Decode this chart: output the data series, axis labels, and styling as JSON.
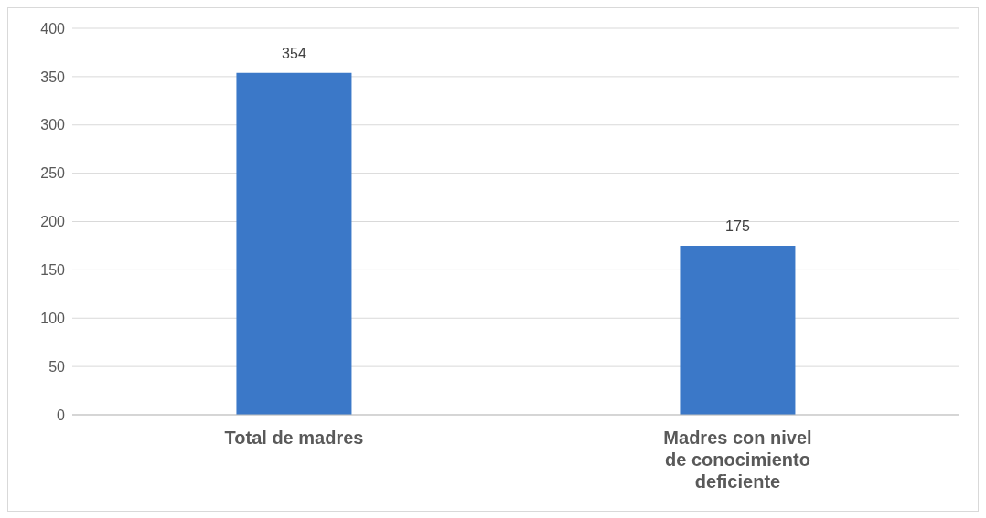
{
  "chart_data": {
    "type": "bar",
    "categories": [
      "Total de madres",
      "Madres con nivel de conocimiento deficiente"
    ],
    "values": [
      354,
      175
    ],
    "color": "#3b78c8",
    "ylim": [
      0,
      400
    ],
    "yticks": [
      0,
      50,
      100,
      150,
      200,
      250,
      300,
      350,
      400
    ],
    "grid": "y",
    "data_labels": true
  }
}
